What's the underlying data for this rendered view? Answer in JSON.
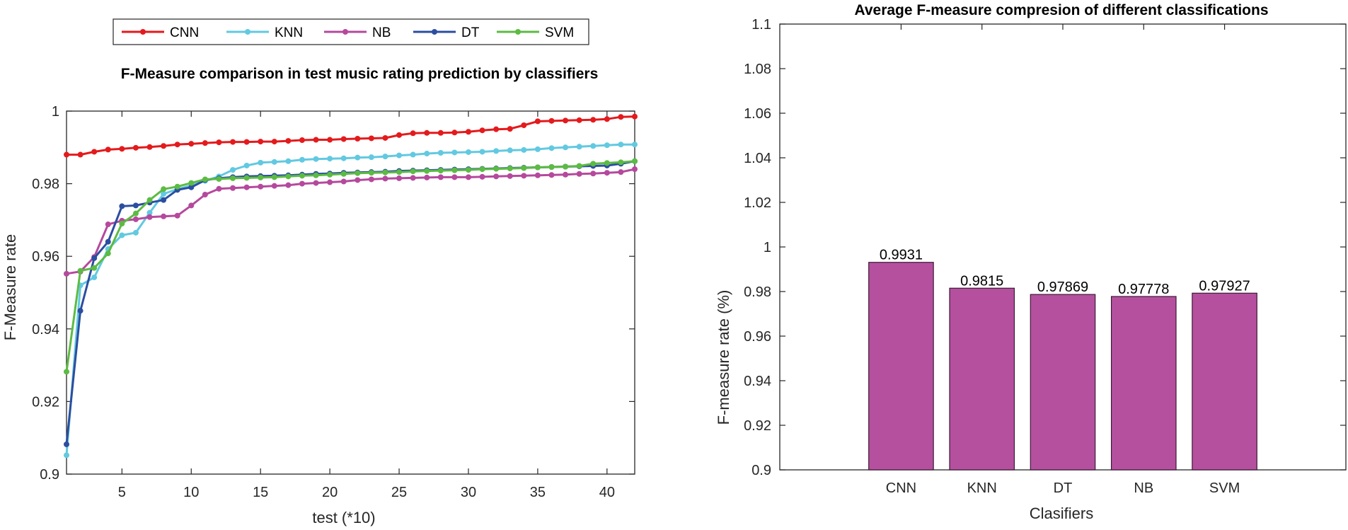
{
  "chart_data": [
    {
      "type": "line",
      "title": "F-Measure comparison in test music rating prediction by classifiers",
      "xlabel": "test (*10)",
      "ylabel": "F-Measure rate",
      "xlim": [
        1,
        42
      ],
      "ylim": [
        0.9,
        1.0
      ],
      "xticks": [
        5,
        10,
        15,
        20,
        25,
        30,
        35,
        40
      ],
      "yticks": [
        0.9,
        0.92,
        0.94,
        0.96,
        0.98,
        1.0
      ],
      "ytick_labels": [
        "0.9",
        "0.92",
        "0.94",
        "0.96",
        "0.98",
        "1"
      ],
      "legend_position": "top-outside",
      "x": [
        1,
        2,
        3,
        4,
        5,
        6,
        7,
        8,
        9,
        10,
        11,
        12,
        13,
        14,
        15,
        16,
        17,
        18,
        19,
        20,
        21,
        22,
        23,
        24,
        25,
        26,
        27,
        28,
        29,
        30,
        31,
        32,
        33,
        34,
        35,
        36,
        37,
        38,
        39,
        40,
        41,
        42
      ],
      "series": [
        {
          "name": "CNN",
          "color": "#e41a1c",
          "values": [
            0.988,
            0.988,
            0.9888,
            0.9894,
            0.9896,
            0.9899,
            0.9901,
            0.9904,
            0.9908,
            0.991,
            0.9912,
            0.9914,
            0.9915,
            0.9915,
            0.9916,
            0.9916,
            0.9918,
            0.992,
            0.9921,
            0.9921,
            0.9923,
            0.9924,
            0.9925,
            0.9926,
            0.9934,
            0.9939,
            0.994,
            0.994,
            0.9941,
            0.9943,
            0.9947,
            0.995,
            0.9951,
            0.9961,
            0.9972,
            0.9973,
            0.9974,
            0.9975,
            0.9976,
            0.9978,
            0.9984,
            0.9985
          ]
        },
        {
          "name": "KNN",
          "color": "#62c9e1",
          "values": [
            0.9052,
            0.952,
            0.9542,
            0.962,
            0.9658,
            0.9665,
            0.972,
            0.9772,
            0.9785,
            0.9795,
            0.9808,
            0.982,
            0.9838,
            0.985,
            0.9858,
            0.986,
            0.9862,
            0.9866,
            0.9868,
            0.9869,
            0.987,
            0.9872,
            0.9873,
            0.9875,
            0.9878,
            0.988,
            0.9883,
            0.9885,
            0.9886,
            0.9887,
            0.9888,
            0.989,
            0.9892,
            0.9893,
            0.9895,
            0.9898,
            0.99,
            0.9902,
            0.9904,
            0.9906,
            0.9908,
            0.9908
          ]
        },
        {
          "name": "NB",
          "color": "#b5499d",
          "values": [
            0.9552,
            0.9558,
            0.9598,
            0.9688,
            0.9698,
            0.9702,
            0.9708,
            0.971,
            0.9712,
            0.974,
            0.977,
            0.9786,
            0.9788,
            0.979,
            0.9792,
            0.9794,
            0.9796,
            0.98,
            0.9802,
            0.9804,
            0.9806,
            0.981,
            0.9812,
            0.9814,
            0.9815,
            0.9816,
            0.9817,
            0.9818,
            0.9818,
            0.9818,
            0.9819,
            0.982,
            0.9821,
            0.9822,
            0.9823,
            0.9824,
            0.9825,
            0.9827,
            0.9828,
            0.983,
            0.9832,
            0.984
          ]
        },
        {
          "name": "DT",
          "color": "#2b4ea0",
          "values": [
            0.9082,
            0.945,
            0.9595,
            0.964,
            0.9738,
            0.974,
            0.9748,
            0.9755,
            0.9783,
            0.979,
            0.981,
            0.9815,
            0.9818,
            0.982,
            0.9821,
            0.9822,
            0.9823,
            0.9825,
            0.9827,
            0.9828,
            0.983,
            0.9831,
            0.9832,
            0.9833,
            0.9835,
            0.9836,
            0.9837,
            0.9838,
            0.9839,
            0.984,
            0.9841,
            0.9842,
            0.9843,
            0.9844,
            0.9845,
            0.9846,
            0.9847,
            0.9848,
            0.9849,
            0.985,
            0.9855,
            0.9862
          ]
        },
        {
          "name": "SVM",
          "color": "#5cbb43",
          "values": [
            0.9282,
            0.956,
            0.9568,
            0.9608,
            0.969,
            0.9718,
            0.9755,
            0.9785,
            0.9792,
            0.9802,
            0.9812,
            0.9813,
            0.9815,
            0.9816,
            0.9817,
            0.9818,
            0.982,
            0.9822,
            0.9823,
            0.9825,
            0.9827,
            0.9829,
            0.983,
            0.9831,
            0.9832,
            0.9834,
            0.9835,
            0.9836,
            0.9837,
            0.9838,
            0.984,
            0.9841,
            0.9842,
            0.9843,
            0.9845,
            0.9846,
            0.9847,
            0.9849,
            0.9855,
            0.9857,
            0.9859,
            0.9862
          ]
        }
      ]
    },
    {
      "type": "bar",
      "title": "Average F-measure compresion of different classifications",
      "xlabel": "Clasifiers",
      "ylabel": "F-measure rate (%)",
      "ylim": [
        0.9,
        1.1
      ],
      "yticks": [
        0.9,
        0.92,
        0.94,
        0.96,
        0.98,
        1.0,
        1.02,
        1.04,
        1.06,
        1.08,
        1.1
      ],
      "ytick_labels": [
        "0.9",
        "0.92",
        "0.94",
        "0.96",
        "0.98",
        "1",
        "1.02",
        "1.04",
        "1.06",
        "1.08",
        "1.1"
      ],
      "categories": [
        "CNN",
        "KNN",
        "DT",
        "NB",
        "SVM"
      ],
      "values": [
        0.9931,
        0.9815,
        0.97869,
        0.97778,
        0.97927
      ],
      "data_labels": [
        "0.9931",
        "0.9815",
        "0.97869",
        "0.97778",
        "0.97927"
      ],
      "bar_color": "#b5509e",
      "bar_edge_color": "#3a1a35"
    }
  ]
}
